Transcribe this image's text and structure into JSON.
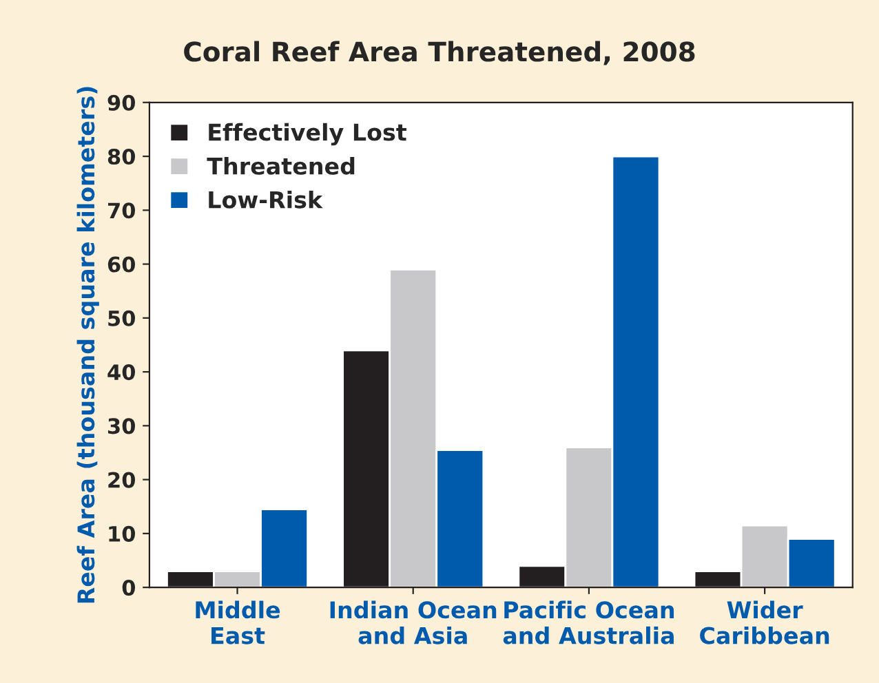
{
  "chart_data": {
    "type": "bar",
    "title": "Coral Reef Area Threatened, 2008",
    "categories": [
      "Middle\nEast",
      "Indian Ocean\nand Asia",
      "Pacific Ocean\nand Australia",
      "Wider\nCaribbean"
    ],
    "series": [
      {
        "name": "Effectively Lost",
        "color": "#231f20",
        "values": [
          3,
          44,
          4,
          3
        ]
      },
      {
        "name": "Threatened",
        "color": "#c8c8ca",
        "values": [
          3,
          59,
          26,
          11.5
        ]
      },
      {
        "name": "Low-Risk",
        "color": "#005bac",
        "values": [
          14.5,
          25.5,
          80,
          9
        ]
      }
    ],
    "ylabel": "Reef Area (thousand square kilometers)",
    "ylim": [
      0,
      90
    ],
    "yticks": [
      0,
      10,
      20,
      30,
      40,
      50,
      60,
      70,
      80,
      90
    ],
    "legend": "top left",
    "grid": false
  }
}
